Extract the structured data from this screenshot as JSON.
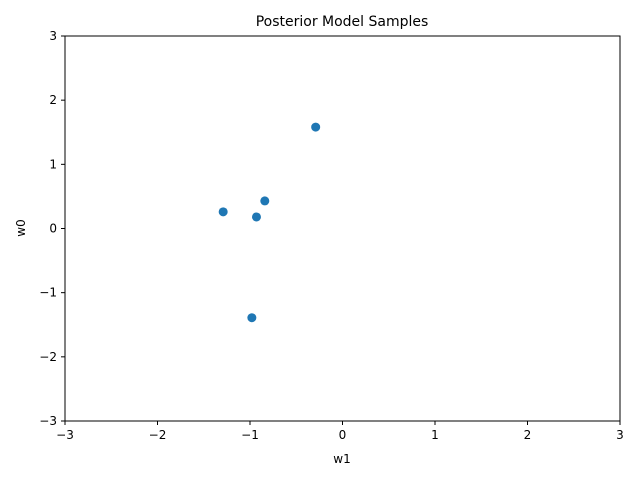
{
  "chart_data": {
    "type": "scatter",
    "title": "Posterior Model Samples",
    "xlabel": "w1",
    "ylabel": "w0",
    "xlim": [
      -3,
      3
    ],
    "ylim": [
      -3,
      3
    ],
    "xticks": [
      -3,
      -2,
      -1,
      0,
      1,
      2,
      3
    ],
    "yticks": [
      -3,
      -2,
      -1,
      0,
      1,
      2,
      3
    ],
    "tick_labels": [
      "−3",
      "−2",
      "−1",
      "0",
      "1",
      "2",
      "3"
    ],
    "grid": false,
    "color": "#1f77b4",
    "series": [
      {
        "points": [
          {
            "x": -0.29,
            "y": 1.58
          },
          {
            "x": -1.29,
            "y": 0.26
          },
          {
            "x": -0.84,
            "y": 0.43
          },
          {
            "x": -0.93,
            "y": 0.18
          },
          {
            "x": -0.98,
            "y": -1.39
          }
        ]
      }
    ]
  }
}
